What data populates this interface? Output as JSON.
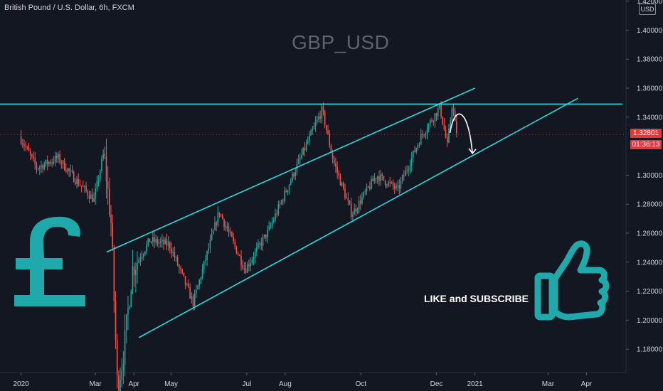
{
  "header": {
    "symbol_title": "British Pound / U.S. Dollar, 6h, FXCM",
    "watermark": "GBP_USD",
    "currency_label": "USD"
  },
  "price_tags": {
    "last_price": "1.32801",
    "countdown": "01:36:13"
  },
  "overlay": {
    "like_text": "LIKE and SUBSCRIBE",
    "pound_icon": "pound-sign-icon",
    "thumbs_icon": "thumbs-up-icon"
  },
  "colors": {
    "background": "#131722",
    "up": "#26a69a",
    "down": "#ef5350",
    "trendline": "#2bd9dc",
    "overlay_teal": "#1fa9aa",
    "axis_text": "#d1d4dc",
    "tag_red": "#e03a3e"
  },
  "chart_data": {
    "type": "candlestick",
    "x_tick_labels": [
      "2020",
      "Mar",
      "Apr",
      "May",
      "Jul",
      "Aug",
      "Oct",
      "Dec",
      "2021",
      "Mar",
      "Apr"
    ],
    "y_tick_labels": [
      "1.42000",
      "1.40000",
      "1.38000",
      "1.36000",
      "1.34000",
      "1.30000",
      "1.28000",
      "1.26000",
      "1.24000",
      "1.22000",
      "1.20000",
      "1.18000"
    ],
    "ylim": [
      1.16,
      1.42
    ],
    "x_start": "2020-01-01",
    "x_end": "2021-04-30",
    "last_price": 1.32801,
    "price_path": [
      [
        "2020-01-01",
        1.327
      ],
      [
        "2020-01-15",
        1.305
      ],
      [
        "2020-02-01",
        1.312
      ],
      [
        "2020-02-15",
        1.297
      ],
      [
        "2020-03-01",
        1.283
      ],
      [
        "2020-03-09",
        1.316
      ],
      [
        "2020-03-15",
        1.265
      ],
      [
        "2020-03-20",
        1.152
      ],
      [
        "2020-03-25",
        1.178
      ],
      [
        "2020-04-01",
        1.235
      ],
      [
        "2020-04-15",
        1.255
      ],
      [
        "2020-05-01",
        1.252
      ],
      [
        "2020-05-20",
        1.212
      ],
      [
        "2020-06-10",
        1.275
      ],
      [
        "2020-07-01",
        1.235
      ],
      [
        "2020-07-20",
        1.262
      ],
      [
        "2020-08-10",
        1.303
      ],
      [
        "2020-09-01",
        1.345
      ],
      [
        "2020-09-10",
        1.31
      ],
      [
        "2020-09-25",
        1.273
      ],
      [
        "2020-10-15",
        1.3
      ],
      [
        "2020-11-01",
        1.29
      ],
      [
        "2020-11-20",
        1.327
      ],
      [
        "2020-12-05",
        1.347
      ],
      [
        "2020-12-11",
        1.32
      ],
      [
        "2020-12-15",
        1.35
      ],
      [
        "2020-12-18",
        1.33
      ]
    ],
    "trendlines": [
      {
        "name": "horizontal-resistance",
        "from": [
          "2019-12-01",
          1.349
        ],
        "to": [
          "2021-04-30",
          1.349
        ]
      },
      {
        "name": "channel-upper",
        "from": [
          "2020-03-10",
          1.247
        ],
        "to": [
          "2021-01-01",
          1.36
        ]
      },
      {
        "name": "channel-lower",
        "from": [
          "2020-04-05",
          1.188
        ],
        "to": [
          "2021-03-25",
          1.353
        ]
      }
    ],
    "projection_arrow": {
      "from": [
        "2020-12-20",
        1.338
      ],
      "to": [
        "2020-12-30",
        1.315
      ]
    },
    "grid": false
  }
}
